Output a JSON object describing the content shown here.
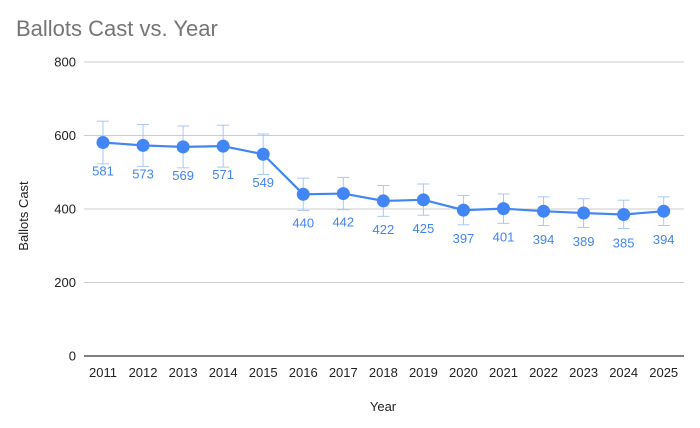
{
  "chart_data": {
    "type": "line",
    "title": "Ballots Cast vs. Year",
    "xlabel": "Year",
    "ylabel": "Ballots Cast",
    "categories": [
      "2011",
      "2012",
      "2013",
      "2014",
      "2015",
      "2016",
      "2017",
      "2018",
      "2019",
      "2020",
      "2021",
      "2022",
      "2023",
      "2024",
      "2025"
    ],
    "series": [
      {
        "values": [
          581,
          573,
          569,
          571,
          549,
          440,
          442,
          422,
          425,
          397,
          401,
          394,
          389,
          385,
          394
        ],
        "error_low": [
          523,
          516,
          512,
          514,
          494,
          396,
          398,
          380,
          383,
          357,
          361,
          355,
          350,
          347,
          355
        ],
        "error_high": [
          639,
          630,
          626,
          628,
          604,
          484,
          486,
          464,
          468,
          437,
          441,
          433,
          428,
          424,
          433
        ]
      }
    ],
    "ylim": [
      0,
      800
    ],
    "yticks": [
      0,
      200,
      400,
      600,
      800
    ],
    "grid": true,
    "legend": "none",
    "data_labels": true,
    "colors": {
      "series": "#4285f4",
      "error_bar": "#a8c7fa",
      "grid": "#cccccc",
      "axis": "#333333",
      "title": "#757575"
    }
  }
}
